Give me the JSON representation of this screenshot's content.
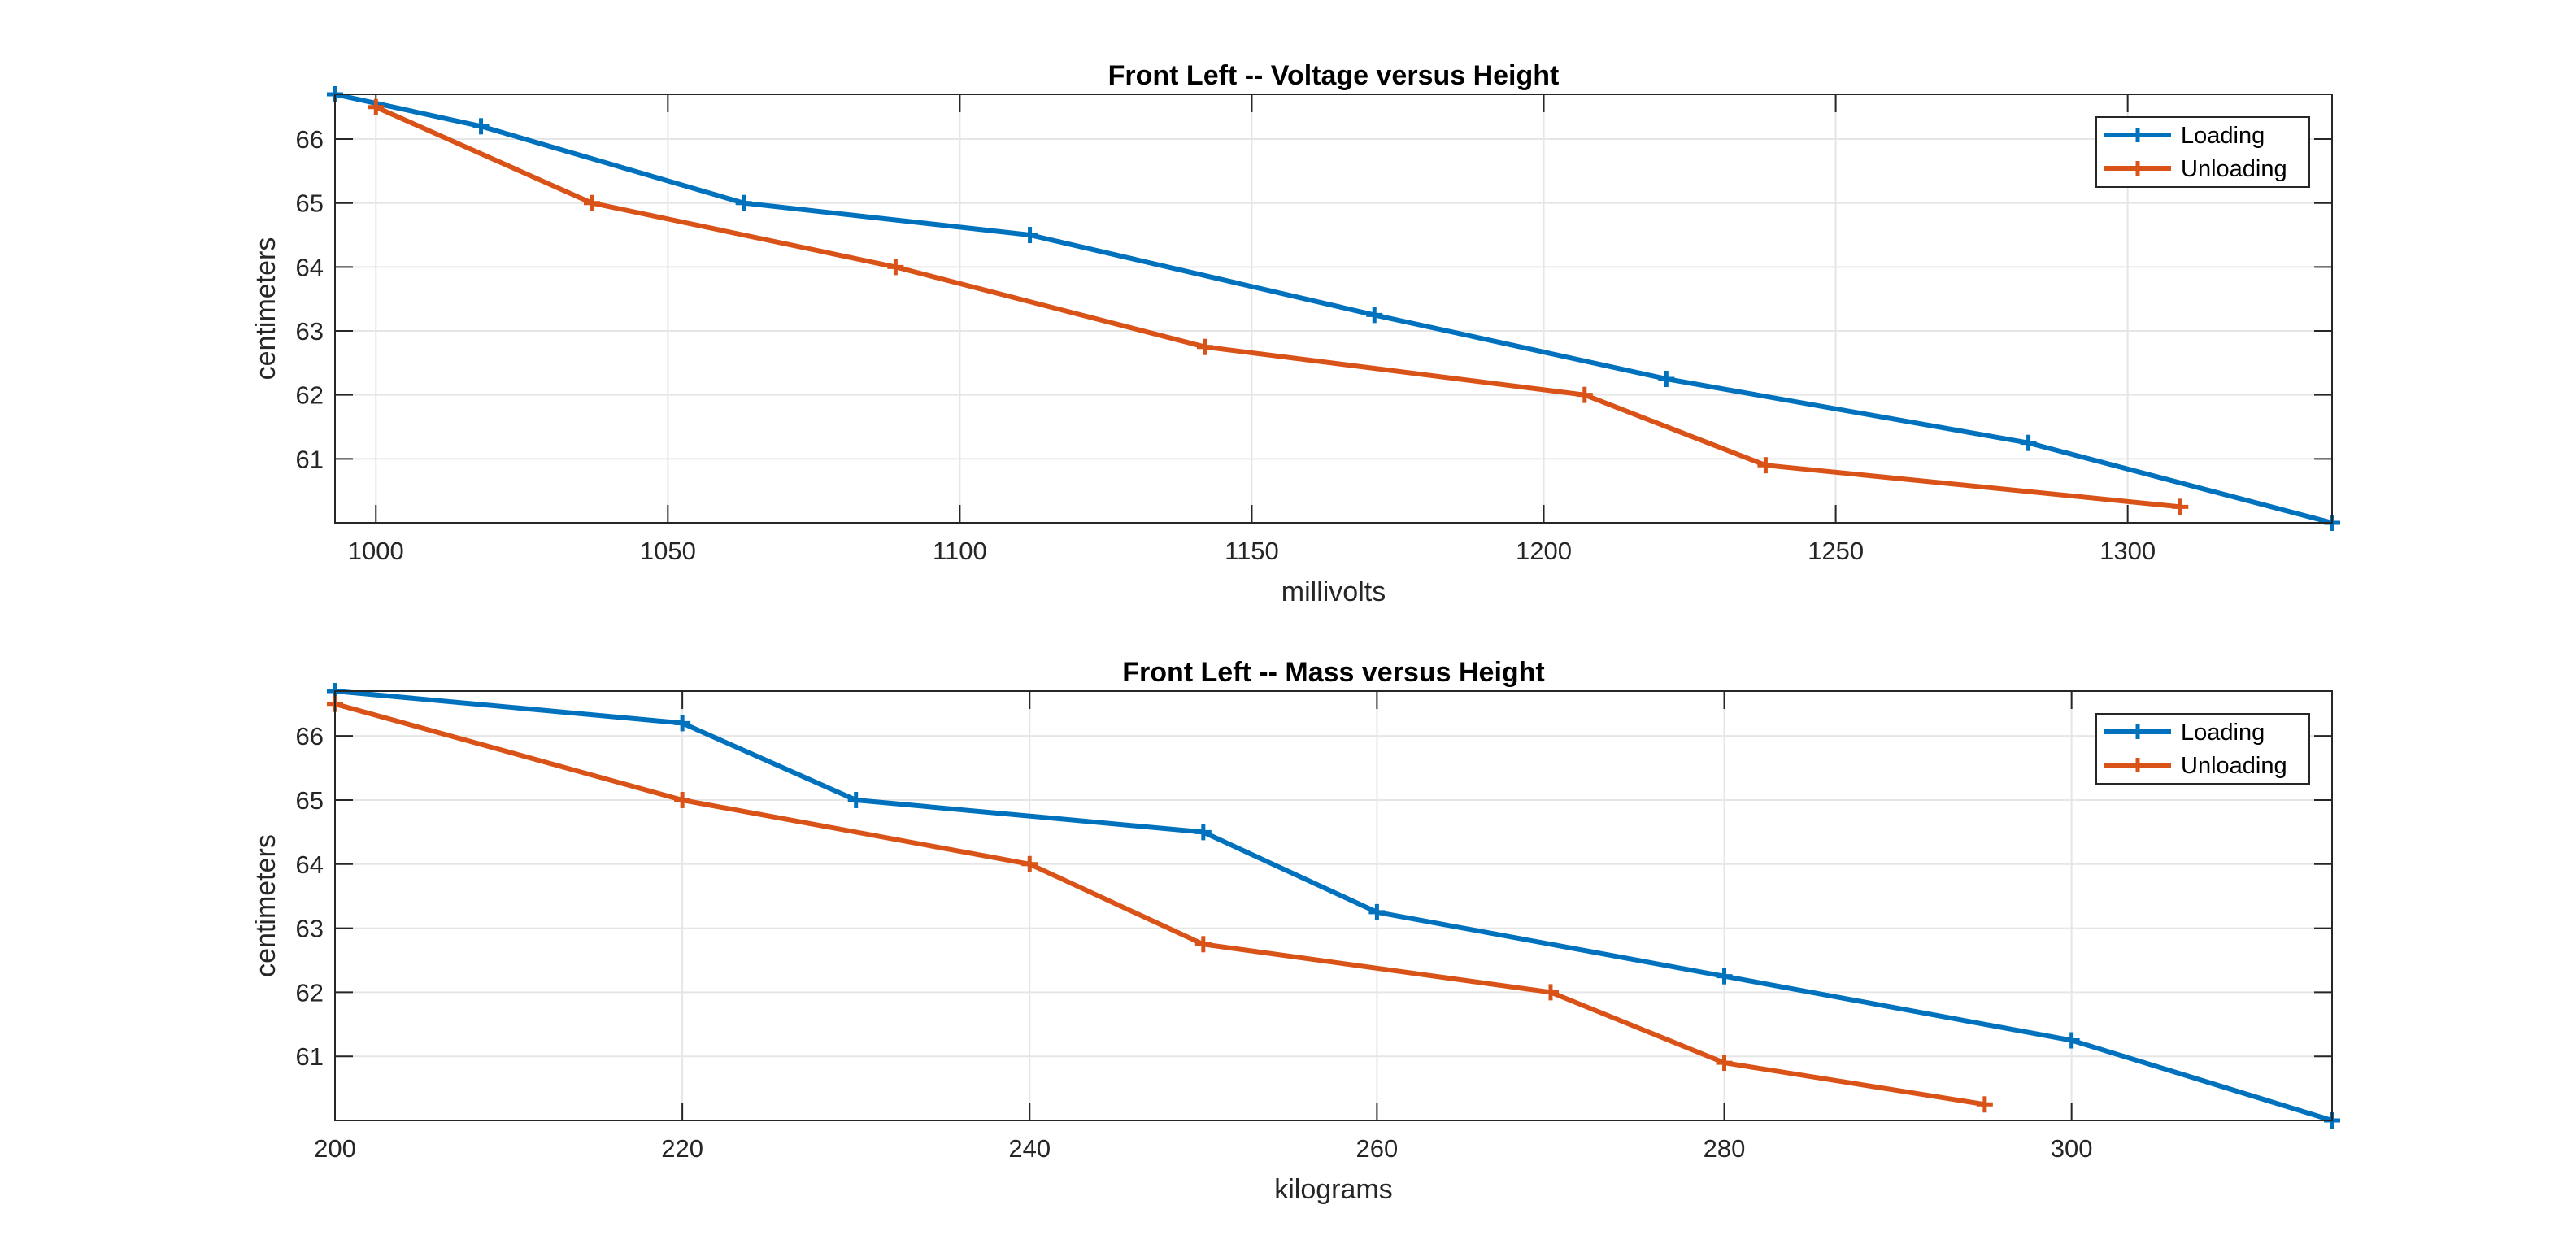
{
  "chart_data": [
    {
      "type": "line",
      "title": "Front Left -- Voltage versus Height",
      "xlabel": "millivolts",
      "ylabel": "centimeters",
      "xlim": [
        993,
        1335
      ],
      "ylim": [
        60,
        66.7
      ],
      "xticks": [
        1000,
        1050,
        1100,
        1150,
        1200,
        1250,
        1300
      ],
      "yticks": [
        61,
        62,
        63,
        64,
        65,
        66
      ],
      "grid": true,
      "legend_position": "top-right",
      "series": [
        {
          "name": "Loading",
          "color": "#0072BD",
          "marker": "plus",
          "x": [
            993,
            1018,
            1063,
            1112,
            1171,
            1221,
            1283,
            1335
          ],
          "y": [
            66.7,
            66.2,
            65.0,
            64.5,
            63.25,
            62.25,
            61.25,
            60.0
          ]
        },
        {
          "name": "Unloading",
          "color": "#D95319",
          "marker": "plus",
          "x": [
            1000,
            1037,
            1089,
            1142,
            1207,
            1238,
            1309
          ],
          "y": [
            66.5,
            65.0,
            64.0,
            62.75,
            62.0,
            60.9,
            60.25
          ]
        }
      ]
    },
    {
      "type": "line",
      "title": "Front Left -- Mass versus Height",
      "xlabel": "kilograms",
      "ylabel": "centimeters",
      "xlim": [
        200,
        315
      ],
      "ylim": [
        60,
        66.7
      ],
      "xticks": [
        200,
        220,
        240,
        260,
        280,
        300
      ],
      "yticks": [
        61,
        62,
        63,
        64,
        65,
        66
      ],
      "grid": true,
      "legend_position": "top-right",
      "series": [
        {
          "name": "Loading",
          "color": "#0072BD",
          "marker": "plus",
          "x": [
            200,
            220,
            230,
            250,
            260,
            280,
            300,
            315
          ],
          "y": [
            66.7,
            66.2,
            65.0,
            64.5,
            63.25,
            62.25,
            61.25,
            60.0
          ]
        },
        {
          "name": "Unloading",
          "color": "#D95319",
          "marker": "plus",
          "x": [
            200,
            220,
            240,
            250,
            270,
            280,
            295
          ],
          "y": [
            66.5,
            65.0,
            64.0,
            62.75,
            62.0,
            60.9,
            60.25
          ]
        }
      ]
    }
  ]
}
